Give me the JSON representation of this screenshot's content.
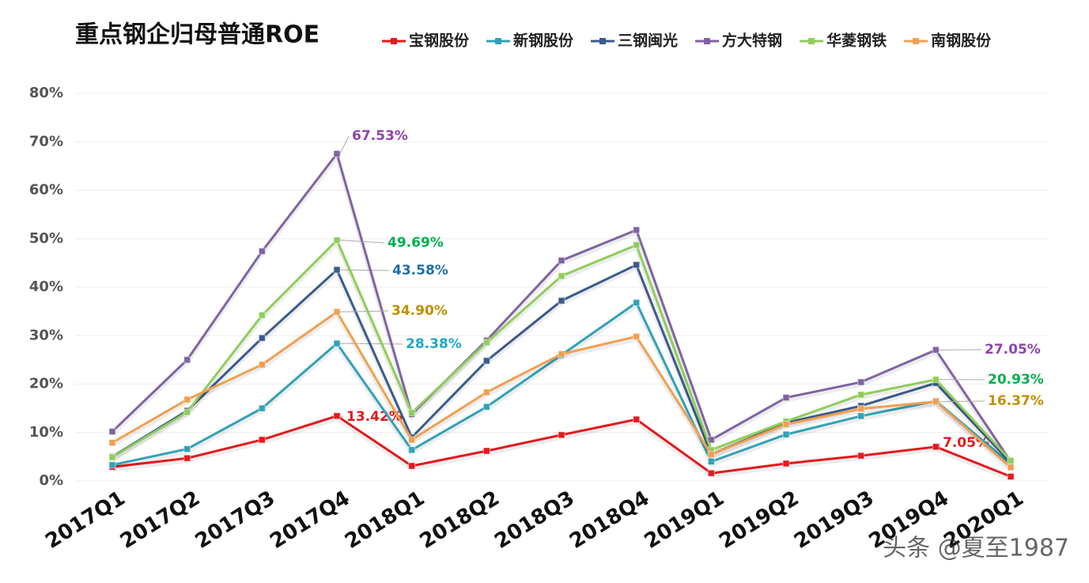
{
  "chart_data": {
    "type": "line",
    "title": "重点钢企归母普通ROE",
    "watermark": "头条 @夏至1987",
    "categories": [
      "2017Q1",
      "2017Q2",
      "2017Q3",
      "2017Q4",
      "2018Q1",
      "2018Q2",
      "2018Q3",
      "2018Q4",
      "2019Q1",
      "2019Q2",
      "2019Q3",
      "2019Q4",
      "2020Q1"
    ],
    "ylim": [
      0,
      80
    ],
    "yticks": [
      {
        "value": 0,
        "label": "0%"
      },
      {
        "value": 10,
        "label": "10%"
      },
      {
        "value": 20,
        "label": "20%"
      },
      {
        "value": 30,
        "label": "30%"
      },
      {
        "value": 40,
        "label": "40%"
      },
      {
        "value": 50,
        "label": "50%"
      },
      {
        "value": 60,
        "label": "60%"
      },
      {
        "value": 70,
        "label": "70%"
      },
      {
        "value": 80,
        "label": "80%"
      }
    ],
    "grid": true,
    "legend": "top",
    "series": [
      {
        "name": "宝钢股份",
        "color": "#e31a1c",
        "label_color": "#e31a1c",
        "values": [
          2.9,
          4.7,
          8.5,
          13.42,
          3.1,
          6.2,
          9.5,
          12.7,
          1.6,
          3.6,
          5.2,
          7.05,
          0.9
        ],
        "value_labels": [
          null,
          null,
          null,
          "13.42%",
          null,
          null,
          null,
          null,
          null,
          null,
          null,
          "7.05%",
          null
        ]
      },
      {
        "name": "新钢股份",
        "color": "#31a2b8",
        "label_color": "#1fa8c9",
        "values": [
          3.3,
          6.6,
          15.0,
          28.38,
          6.4,
          15.3,
          26.0,
          36.8,
          4.0,
          9.6,
          13.4,
          16.5,
          3.5
        ],
        "value_labels": [
          null,
          null,
          null,
          "28.38%",
          null,
          null,
          null,
          null,
          null,
          null,
          null,
          null,
          null
        ]
      },
      {
        "name": "三钢闽光",
        "color": "#3a5b8c",
        "label_color": "#1f6fa8",
        "values": [
          5.0,
          14.5,
          29.5,
          43.58,
          9.0,
          24.8,
          37.2,
          44.6,
          5.5,
          12.0,
          15.5,
          20.2,
          3.8
        ],
        "value_labels": [
          null,
          null,
          null,
          "43.58%",
          null,
          null,
          null,
          null,
          null,
          null,
          null,
          null,
          null
        ]
      },
      {
        "name": "方大特钢",
        "color": "#8064a2",
        "label_color": "#8e44ad",
        "values": [
          10.2,
          25.0,
          47.4,
          67.53,
          13.8,
          29.0,
          45.5,
          51.8,
          8.5,
          17.2,
          20.4,
          27.05,
          4.0
        ],
        "value_labels": [
          null,
          null,
          null,
          "67.53%",
          null,
          null,
          null,
          null,
          null,
          null,
          null,
          "27.05%",
          null
        ]
      },
      {
        "name": "华菱钢铁",
        "color": "#8fce5a",
        "label_color": "#00b050",
        "values": [
          4.9,
          14.2,
          34.2,
          49.69,
          14.1,
          28.6,
          42.3,
          48.7,
          6.4,
          12.3,
          17.8,
          20.93,
          4.2
        ],
        "value_labels": [
          null,
          null,
          null,
          "49.69%",
          null,
          null,
          null,
          null,
          null,
          null,
          null,
          "20.93%",
          null
        ]
      },
      {
        "name": "南钢股份",
        "color": "#f0a050",
        "label_color": "#c09000",
        "values": [
          7.9,
          16.8,
          24.0,
          34.9,
          8.5,
          18.3,
          26.2,
          29.8,
          5.5,
          11.7,
          14.9,
          16.37,
          2.8
        ],
        "value_labels": [
          null,
          null,
          null,
          "34.90%",
          null,
          null,
          null,
          null,
          null,
          null,
          null,
          "16.37%",
          null
        ]
      }
    ]
  }
}
